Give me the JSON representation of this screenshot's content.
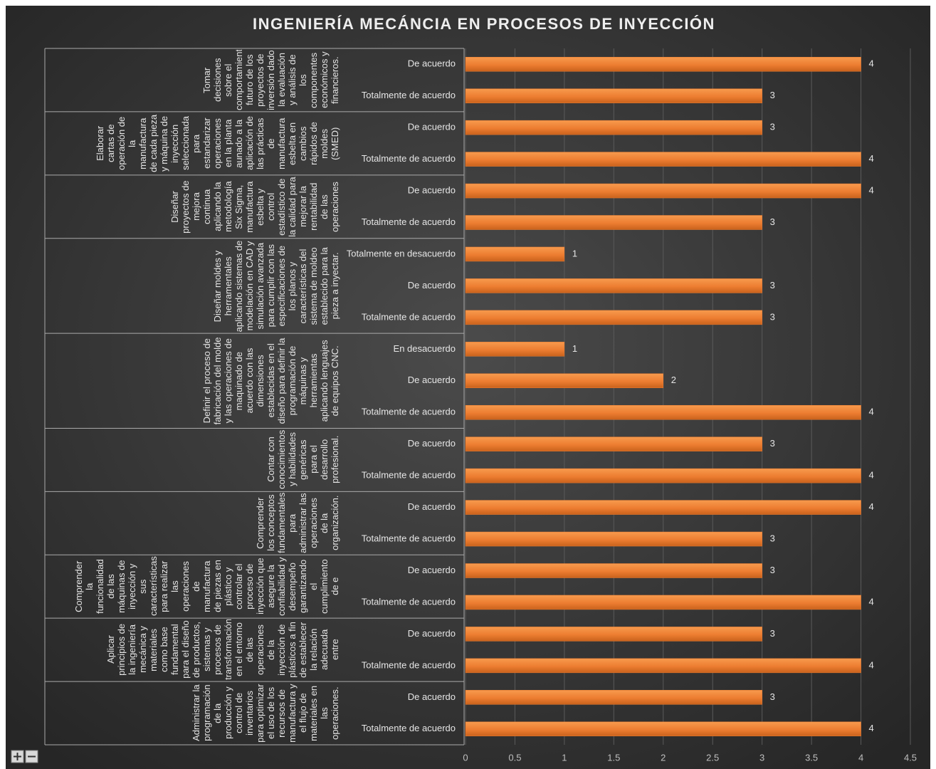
{
  "chart_data": {
    "type": "bar",
    "orientation": "horizontal",
    "title": "INGENIERÍA MECÁNCIA EN PROCESOS DE INYECCIÓN",
    "color": "#ed7d31",
    "grid": true,
    "xlim": [
      0,
      4.5
    ],
    "xticks": [
      0,
      0.5,
      1,
      1.5,
      2,
      2.5,
      3,
      3.5,
      4,
      4.5
    ],
    "groups": [
      {
        "label": "Tomar decisiones sobre el comportamiento futuro de los proyectos de inversión dado la evaluación y análisis de los componentes económicos y financieros.",
        "categories": [
          "De acuerdo",
          "Totalmente de acuerdo"
        ],
        "values": [
          4,
          3
        ]
      },
      {
        "label": "Elaborar cartas de operación de la manufactura de cada pieza y máquina de inyección seleccionada para estandarizar operaciones en la planta aunado a la aplicación de las prácticas de manufactura esbelta en cambios rápidos de moldes (SMED)",
        "categories": [
          "De acuerdo",
          "Totalmente de acuerdo"
        ],
        "values": [
          3,
          4
        ]
      },
      {
        "label": "Diseñar proyectos de mejora continua aplicando la metodología Six Sigma, manufactura esbelta y control estadístico de la calidad para mejorar la rentabilidad de las operaciones",
        "categories": [
          "De acuerdo",
          "Totalmente de acuerdo"
        ],
        "values": [
          4,
          3
        ]
      },
      {
        "label": "Diseñar moldes y herramentales aplicando sistemas de modelación en CAD y simulación avanzada para cumplir con las especificaciones de los planos y características del sistema de moldeo establecido para la pieza a inyectar.",
        "categories": [
          "Totalmente en desacuerdo",
          "De acuerdo",
          "Totalmente de acuerdo"
        ],
        "values": [
          1,
          3,
          3
        ]
      },
      {
        "label": "Definir el proceso de fabricación del molde y las operaciones de maquinado de acuerdo con las dimensiones establecidas en el diseño para definir la programación de máquinas y herramientas aplicando lenguajes de equipos CNC.",
        "categories": [
          "En desacuerdo",
          "De acuerdo",
          "Totalmente de acuerdo"
        ],
        "values": [
          1,
          2,
          4
        ]
      },
      {
        "label": "Contar con conocimientos y habilidades genéricas para el desarrollo profesional.",
        "categories": [
          "De acuerdo",
          "Totalmente de acuerdo"
        ],
        "values": [
          3,
          4
        ]
      },
      {
        "label": "Comprender los conceptos fundamentales para administrar las operaciones de la organización.",
        "categories": [
          "De acuerdo",
          "Totalmente de acuerdo"
        ],
        "values": [
          4,
          3
        ]
      },
      {
        "label": "Comprender la funcionalidad de las máquinas de inyección y sus características para realizar las operaciones de manufactura de piezas en plástico y controlar el proceso de inyección que asegure la confiabilidad y desempeño garantizando el cumplimiento de e",
        "categories": [
          "De acuerdo",
          "Totalmente de acuerdo"
        ],
        "values": [
          3,
          4
        ]
      },
      {
        "label": "Aplicar principios de la ingeniería mecánica y materiales como base fundamental para el diseño de productos, sistemas y procesos de transformación en el entorno de las operaciones de la inyección de plásticos a fin de establecer la relación adecuada entre",
        "categories": [
          "De acuerdo",
          "Totalmente de acuerdo"
        ],
        "values": [
          3,
          4
        ]
      },
      {
        "label": "Administrar la programación de la producción y control de inventarios para optimizar el uso de los recursos de manufactura y el flujo de materiales en las operaciones.",
        "categories": [
          "De acuerdo",
          "Totalmente de acuerdo"
        ],
        "values": [
          3,
          4
        ]
      }
    ]
  }
}
